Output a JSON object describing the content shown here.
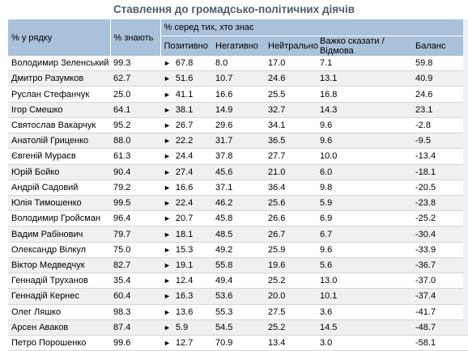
{
  "title": "Ставлення до громадсько-політичних діячів",
  "headers": {
    "row_pct": "% у рядку",
    "know_pct": "% знають",
    "among_known": "% серед тих, хто знає",
    "positive": "Позитивно",
    "negative": "Негативно",
    "neutral": "Нейтрально",
    "hard_to_say": "Важко сказати / Відмова",
    "balance": "Баланс"
  },
  "arrow_glyph": "►",
  "rows": [
    {
      "name": "Володимир Зеленський",
      "know": "99.3",
      "pos": "67.8",
      "neg": "8.0",
      "neu": "17.0",
      "hard": "7.1",
      "bal": "59.8"
    },
    {
      "name": "Дмитро Разумков",
      "know": "62.7",
      "pos": "51.6",
      "neg": "10.7",
      "neu": "24.6",
      "hard": "13.1",
      "bal": "40.9"
    },
    {
      "name": "Руслан Стефанчук",
      "know": "25.0",
      "pos": "41.1",
      "neg": "16.6",
      "neu": "25.5",
      "hard": "16.8",
      "bal": "24.6"
    },
    {
      "name": "Ігор Смешко",
      "know": "64.1",
      "pos": "38.1",
      "neg": "14.9",
      "neu": "32.7",
      "hard": "14.3",
      "bal": "23.1"
    },
    {
      "name": "Святослав Вакарчук",
      "know": "95.2",
      "pos": "26.7",
      "neg": "29.6",
      "neu": "34.1",
      "hard": "9.6",
      "bal": "-2.8"
    },
    {
      "name": "Анатолій Гриценко",
      "know": "88.0",
      "pos": "22.2",
      "neg": "31.7",
      "neu": "36.5",
      "hard": "9.6",
      "bal": "-9.5"
    },
    {
      "name": "Євгеній Мураєв",
      "know": "61.3",
      "pos": "24.4",
      "neg": "37.8",
      "neu": "27.7",
      "hard": "10.0",
      "bal": "-13.4"
    },
    {
      "name": "Юрій Бойко",
      "know": "90.4",
      "pos": "27.4",
      "neg": "45.6",
      "neu": "21.0",
      "hard": "6.0",
      "bal": "-18.1"
    },
    {
      "name": "Андрій Садовий",
      "know": "79.2",
      "pos": "16.6",
      "neg": "37.1",
      "neu": "36.4",
      "hard": "9.8",
      "bal": "-20.5"
    },
    {
      "name": "Юлія Тимошенко",
      "know": "99.5",
      "pos": "22.4",
      "neg": "46.2",
      "neu": "25.6",
      "hard": "5.9",
      "bal": "-23.8"
    },
    {
      "name": "Володимир Гройсман",
      "know": "96.4",
      "pos": "20.7",
      "neg": "45.8",
      "neu": "26.6",
      "hard": "6.9",
      "bal": "-25.2"
    },
    {
      "name": "Вадим Рабінович",
      "know": "79.7",
      "pos": "18.1",
      "neg": "48.5",
      "neu": "26.7",
      "hard": "6.7",
      "bal": "-30.4"
    },
    {
      "name": "Олександр Вілкул",
      "know": "75.0",
      "pos": "15.3",
      "neg": "49.2",
      "neu": "25.9",
      "hard": "9.6",
      "bal": "-33.9"
    },
    {
      "name": "Віктор Медведчук",
      "know": "82.7",
      "pos": "19.1",
      "neg": "55.8",
      "neu": "19.6",
      "hard": "5.6",
      "bal": "-36.7"
    },
    {
      "name": "Геннадій Труханов",
      "know": "35.4",
      "pos": "12.4",
      "neg": "49.4",
      "neu": "25.2",
      "hard": "13.0",
      "bal": "-37.0"
    },
    {
      "name": "Геннадій Кернес",
      "know": "60.4",
      "pos": "16.3",
      "neg": "53.6",
      "neu": "20.0",
      "hard": "10.1",
      "bal": "-37.4"
    },
    {
      "name": "Олег Ляшко",
      "know": "98.3",
      "pos": "13.6",
      "neg": "55.3",
      "neu": "27.5",
      "hard": "3.6",
      "bal": "-41.7"
    },
    {
      "name": "Арсен Аваков",
      "know": "87.4",
      "pos": "5.9",
      "neg": "54.5",
      "neu": "25.2",
      "hard": "14.5",
      "bal": "-48.7"
    },
    {
      "name": "Петро Порошенко",
      "know": "99.6",
      "pos": "12.7",
      "neg": "70.9",
      "neu": "13.4",
      "hard": "3.0",
      "bal": "-58.1"
    }
  ]
}
